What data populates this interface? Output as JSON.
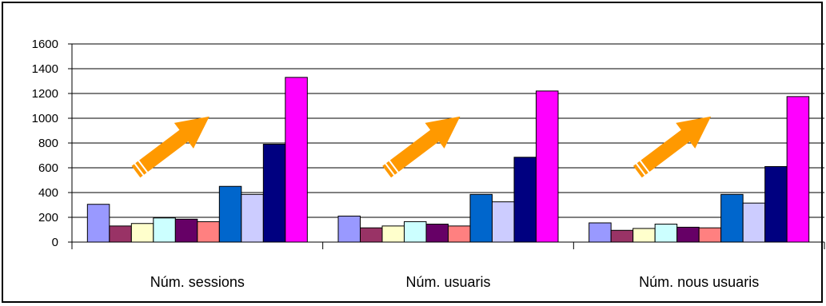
{
  "chart_data": {
    "type": "bar",
    "categories": [
      "Núm. sessions",
      "Núm. usuaris",
      "Núm. nous usuaris"
    ],
    "ylim": [
      0,
      1600
    ],
    "yticks": [
      0,
      200,
      400,
      600,
      800,
      1000,
      1200,
      1400,
      1600
    ],
    "grid": true,
    "legend": "none",
    "series": [
      {
        "color": "#9999FF",
        "values": [
          305,
          210,
          155
        ]
      },
      {
        "color": "#993366",
        "values": [
          130,
          115,
          95
        ]
      },
      {
        "color": "#FFFFCC",
        "values": [
          150,
          130,
          110
        ]
      },
      {
        "color": "#CCFFFF",
        "values": [
          195,
          165,
          145
        ]
      },
      {
        "color": "#660066",
        "values": [
          185,
          145,
          120
        ]
      },
      {
        "color": "#FF8080",
        "values": [
          165,
          130,
          115
        ]
      },
      {
        "color": "#0066CC",
        "values": [
          450,
          385,
          385
        ]
      },
      {
        "color": "#CCCCFF",
        "values": [
          385,
          325,
          315
        ]
      },
      {
        "color": "#000080",
        "values": [
          790,
          685,
          610
        ]
      },
      {
        "color": "#FF00FF",
        "values": [
          1330,
          1220,
          1175
        ]
      }
    ],
    "annotations": [
      {
        "type": "arrow",
        "color": "#FF9900",
        "group": 0
      },
      {
        "type": "arrow",
        "color": "#FF9900",
        "group": 1
      },
      {
        "type": "arrow",
        "color": "#FF9900",
        "group": 2
      }
    ]
  }
}
